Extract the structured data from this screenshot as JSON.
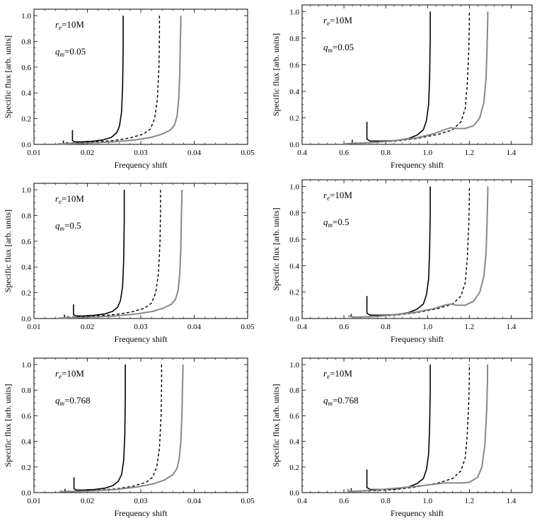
{
  "figure": {
    "ylabel": "Specific flux [arb. units]",
    "xlabel": "Frequency shift"
  },
  "chart_data": [
    {
      "type": "line",
      "annot_r": "r_e=10M",
      "annot_q": "q_m=0.05",
      "xlabel": "Frequency shift",
      "ylabel": "Specific flux [arb. units]",
      "xlim": [
        0.01,
        0.05
      ],
      "ylim": [
        0,
        1.05
      ],
      "xticks": [
        "0.01",
        "0.02",
        "0.03",
        "0.04",
        "0.05"
      ],
      "yticks": [
        "0.0",
        "0.2",
        "0.4",
        "0.6",
        "0.8",
        "1.0"
      ],
      "series": [
        {
          "style": "solid-black",
          "x": [
            0.0172,
            0.0172,
            0.0176,
            0.019,
            0.021,
            0.023,
            0.0245,
            0.0255,
            0.026,
            0.0264,
            0.0266,
            0.0267,
            0.0267
          ],
          "y": [
            0.11,
            0.03,
            0.02,
            0.02,
            0.025,
            0.035,
            0.055,
            0.09,
            0.14,
            0.25,
            0.45,
            0.75,
            1.0
          ]
        },
        {
          "style": "dashed-black",
          "x": [
            0.0155,
            0.0155,
            0.0165,
            0.018,
            0.021,
            0.025,
            0.028,
            0.0305,
            0.0318,
            0.0326,
            0.0331,
            0.0334,
            0.0335,
            0.0335
          ],
          "y": [
            0.03,
            0.015,
            0.01,
            0.012,
            0.018,
            0.03,
            0.05,
            0.08,
            0.12,
            0.2,
            0.35,
            0.6,
            0.85,
            1.0
          ]
        },
        {
          "style": "solid-gray",
          "x": [
            0.0145,
            0.016,
            0.02,
            0.025,
            0.029,
            0.032,
            0.034,
            0.0355,
            0.0363,
            0.0368,
            0.0371,
            0.0373,
            0.0374,
            0.0375,
            0.0375
          ],
          "y": [
            0.005,
            0.005,
            0.01,
            0.02,
            0.035,
            0.055,
            0.08,
            0.11,
            0.15,
            0.22,
            0.35,
            0.55,
            0.8,
            0.95,
            1.0
          ]
        }
      ]
    },
    {
      "type": "line",
      "annot_r": "r_e=10M",
      "annot_q": "q_m=0.05",
      "xlabel": "Frequency shift",
      "ylabel": "Specific flux [arb. units]",
      "xlim": [
        0.4,
        1.5
      ],
      "ylim": [
        0,
        1.05
      ],
      "xticks": [
        "0.4",
        "0.6",
        "0.8",
        "1.0",
        "1.2",
        "1.4"
      ],
      "yticks": [
        "0.0",
        "0.2",
        "0.4",
        "0.6",
        "0.8",
        "1.0"
      ],
      "series": [
        {
          "style": "solid-black",
          "x": [
            0.71,
            0.71,
            0.725,
            0.78,
            0.85,
            0.91,
            0.95,
            0.98,
            0.995,
            1.005,
            1.01,
            1.013,
            1.013
          ],
          "y": [
            0.17,
            0.04,
            0.025,
            0.025,
            0.03,
            0.045,
            0.07,
            0.11,
            0.18,
            0.3,
            0.5,
            0.8,
            1.0
          ]
        },
        {
          "style": "dashed-black",
          "x": [
            0.64,
            0.64,
            0.66,
            0.75,
            0.85,
            0.95,
            1.05,
            1.12,
            1.16,
            1.18,
            1.19,
            1.197,
            1.2,
            1.2
          ],
          "y": [
            0.035,
            0.015,
            0.01,
            0.015,
            0.025,
            0.045,
            0.075,
            0.11,
            0.17,
            0.27,
            0.45,
            0.7,
            0.9,
            1.0
          ]
        },
        {
          "style": "solid-gray",
          "x": [
            0.6,
            0.65,
            0.75,
            0.85,
            0.95,
            1.03,
            1.08,
            1.11,
            1.14,
            1.18,
            1.22,
            1.25,
            1.27,
            1.28,
            1.285,
            1.288,
            1.288
          ],
          "y": [
            0.005,
            0.008,
            0.015,
            0.03,
            0.05,
            0.08,
            0.11,
            0.125,
            0.12,
            0.12,
            0.14,
            0.2,
            0.32,
            0.5,
            0.75,
            0.95,
            1.0
          ]
        }
      ]
    },
    {
      "type": "line",
      "annot_r": "r_e=10M",
      "annot_q": "q_m=0.5",
      "xlabel": "Frequency shift",
      "ylabel": "Specific flux [arb. units]",
      "xlim": [
        0.01,
        0.05
      ],
      "ylim": [
        0,
        1.05
      ],
      "xticks": [
        "0.01",
        "0.02",
        "0.03",
        "0.04",
        "0.05"
      ],
      "yticks": [
        "0.0",
        "0.2",
        "0.4",
        "0.6",
        "0.8",
        "1.0"
      ],
      "series": [
        {
          "style": "solid-black",
          "x": [
            0.0174,
            0.0174,
            0.0178,
            0.0192,
            0.0212,
            0.0232,
            0.0247,
            0.0257,
            0.0262,
            0.0266,
            0.0268,
            0.0269,
            0.0269
          ],
          "y": [
            0.11,
            0.03,
            0.02,
            0.02,
            0.025,
            0.035,
            0.055,
            0.09,
            0.14,
            0.25,
            0.45,
            0.75,
            1.0
          ]
        },
        {
          "style": "dashed-black",
          "x": [
            0.0157,
            0.0157,
            0.0167,
            0.0182,
            0.0212,
            0.0252,
            0.0282,
            0.0307,
            0.032,
            0.0328,
            0.0333,
            0.0336,
            0.0337,
            0.0337
          ],
          "y": [
            0.03,
            0.015,
            0.01,
            0.012,
            0.018,
            0.03,
            0.05,
            0.08,
            0.12,
            0.2,
            0.35,
            0.6,
            0.85,
            1.0
          ]
        },
        {
          "style": "solid-gray",
          "x": [
            0.0147,
            0.0162,
            0.0202,
            0.0252,
            0.0292,
            0.0322,
            0.0342,
            0.0357,
            0.0365,
            0.037,
            0.0373,
            0.0375,
            0.0376,
            0.0377,
            0.0377
          ],
          "y": [
            0.005,
            0.005,
            0.01,
            0.02,
            0.035,
            0.055,
            0.08,
            0.11,
            0.15,
            0.22,
            0.35,
            0.55,
            0.8,
            0.95,
            1.0
          ]
        }
      ]
    },
    {
      "type": "line",
      "annot_r": "r_e=10M",
      "annot_q": "q_m=0.5",
      "xlabel": "Frequency shift",
      "ylabel": "Specific flux [arb. units]",
      "xlim": [
        0.4,
        1.5
      ],
      "ylim": [
        0,
        1.05
      ],
      "xticks": [
        "0.4",
        "0.6",
        "0.8",
        "1.0",
        "1.2",
        "1.4"
      ],
      "yticks": [
        "0.0",
        "0.2",
        "0.4",
        "0.6",
        "0.8",
        "1.0"
      ],
      "series": [
        {
          "style": "solid-black",
          "x": [
            0.71,
            0.71,
            0.725,
            0.78,
            0.85,
            0.91,
            0.95,
            0.98,
            0.995,
            1.005,
            1.01,
            1.013,
            1.013
          ],
          "y": [
            0.17,
            0.04,
            0.025,
            0.025,
            0.03,
            0.045,
            0.07,
            0.11,
            0.18,
            0.3,
            0.5,
            0.8,
            1.0
          ]
        },
        {
          "style": "dashed-black",
          "x": [
            0.635,
            0.635,
            0.655,
            0.75,
            0.85,
            0.95,
            1.05,
            1.12,
            1.16,
            1.18,
            1.19,
            1.197,
            1.2,
            1.2
          ],
          "y": [
            0.035,
            0.015,
            0.01,
            0.015,
            0.025,
            0.045,
            0.075,
            0.11,
            0.17,
            0.27,
            0.45,
            0.7,
            0.9,
            1.0
          ]
        },
        {
          "style": "solid-gray",
          "x": [
            0.62,
            0.65,
            0.75,
            0.85,
            0.95,
            1.03,
            1.08,
            1.11,
            1.14,
            1.18,
            1.22,
            1.25,
            1.27,
            1.28,
            1.285,
            1.288,
            1.288
          ],
          "y": [
            0.02,
            0.01,
            0.015,
            0.03,
            0.05,
            0.075,
            0.1,
            0.11,
            0.1,
            0.1,
            0.13,
            0.2,
            0.32,
            0.5,
            0.75,
            0.95,
            1.0
          ]
        }
      ]
    },
    {
      "type": "line",
      "annot_r": "r_e=10M",
      "annot_q": "q_m=0.768",
      "xlabel": "Frequency shift",
      "ylabel": "Specific flux [arb. units]",
      "xlim": [
        0.01,
        0.05
      ],
      "ylim": [
        0,
        1.05
      ],
      "xticks": [
        "0.01",
        "0.02",
        "0.03",
        "0.04",
        "0.05"
      ],
      "yticks": [
        "0.0",
        "0.2",
        "0.4",
        "0.6",
        "0.8",
        "1.0"
      ],
      "series": [
        {
          "style": "solid-black",
          "x": [
            0.0175,
            0.0175,
            0.0179,
            0.0193,
            0.0213,
            0.0233,
            0.0248,
            0.0258,
            0.0264,
            0.0268,
            0.027,
            0.0271,
            0.0271
          ],
          "y": [
            0.12,
            0.03,
            0.02,
            0.02,
            0.025,
            0.035,
            0.055,
            0.09,
            0.14,
            0.25,
            0.45,
            0.75,
            1.0
          ]
        },
        {
          "style": "dashed-black",
          "x": [
            0.0158,
            0.0158,
            0.0168,
            0.0185,
            0.0215,
            0.0255,
            0.0285,
            0.031,
            0.0322,
            0.033,
            0.0335,
            0.0338,
            0.0339,
            0.0339
          ],
          "y": [
            0.03,
            0.015,
            0.01,
            0.012,
            0.018,
            0.03,
            0.05,
            0.08,
            0.12,
            0.2,
            0.35,
            0.6,
            0.85,
            1.0
          ]
        },
        {
          "style": "solid-gray",
          "x": [
            0.0148,
            0.0165,
            0.0205,
            0.0255,
            0.0295,
            0.0325,
            0.0345,
            0.036,
            0.0368,
            0.0372,
            0.0375,
            0.0377,
            0.0378,
            0.0379,
            0.0379
          ],
          "y": [
            0.01,
            0.008,
            0.012,
            0.025,
            0.045,
            0.07,
            0.1,
            0.14,
            0.19,
            0.27,
            0.4,
            0.6,
            0.82,
            0.95,
            1.0
          ]
        }
      ]
    },
    {
      "type": "line",
      "annot_r": "r_e=10M",
      "annot_q": "q_m=0.768",
      "xlabel": "Frequency shift",
      "ylabel": "Specific flux [arb. units]",
      "xlim": [
        0.4,
        1.5
      ],
      "ylim": [
        0,
        1.05
      ],
      "xticks": [
        "0.4",
        "0.6",
        "0.8",
        "1.0",
        "1.2",
        "1.4"
      ],
      "yticks": [
        "0.0",
        "0.2",
        "0.4",
        "0.6",
        "0.8",
        "1.0"
      ],
      "series": [
        {
          "style": "solid-black",
          "x": [
            0.71,
            0.71,
            0.725,
            0.78,
            0.85,
            0.91,
            0.95,
            0.98,
            0.995,
            1.005,
            1.01,
            1.013,
            1.013
          ],
          "y": [
            0.18,
            0.04,
            0.025,
            0.025,
            0.03,
            0.045,
            0.07,
            0.11,
            0.18,
            0.3,
            0.5,
            0.8,
            1.0
          ]
        },
        {
          "style": "dashed-black",
          "x": [
            0.635,
            0.635,
            0.655,
            0.75,
            0.85,
            0.95,
            1.05,
            1.12,
            1.16,
            1.18,
            1.19,
            1.197,
            1.2,
            1.2
          ],
          "y": [
            0.035,
            0.015,
            0.01,
            0.015,
            0.025,
            0.045,
            0.075,
            0.11,
            0.17,
            0.27,
            0.45,
            0.7,
            0.9,
            1.0
          ]
        },
        {
          "style": "solid-gray",
          "x": [
            0.62,
            0.62,
            0.65,
            0.75,
            0.85,
            0.95,
            1.03,
            1.08,
            1.12,
            1.16,
            1.2,
            1.24,
            1.26,
            1.275,
            1.283,
            1.287,
            1.287
          ],
          "y": [
            0.03,
            0.01,
            0.01,
            0.02,
            0.035,
            0.05,
            0.065,
            0.075,
            0.075,
            0.075,
            0.08,
            0.12,
            0.2,
            0.38,
            0.65,
            0.9,
            1.0
          ]
        }
      ]
    }
  ]
}
